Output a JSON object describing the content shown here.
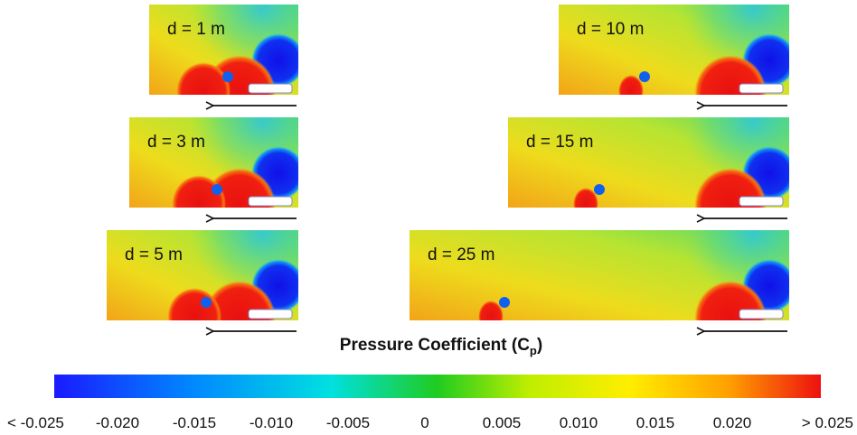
{
  "panels": [
    {
      "label": "d = 1 m"
    },
    {
      "label": "d = 3 m"
    },
    {
      "label": "d = 5 m"
    },
    {
      "label": "d = 10 m"
    },
    {
      "label": "d = 15 m"
    },
    {
      "label": "d = 25 m"
    }
  ],
  "colorbar": {
    "title": "Pressure Coefficient (C",
    "title_subscript": "p",
    "title_end": ")",
    "ticks": [
      "< -0.025",
      "-0.020",
      "-0.015",
      "-0.010",
      "-0.005",
      "0",
      "0.005",
      "0.010",
      "0.015",
      "0.020",
      "> 0.025"
    ]
  }
}
